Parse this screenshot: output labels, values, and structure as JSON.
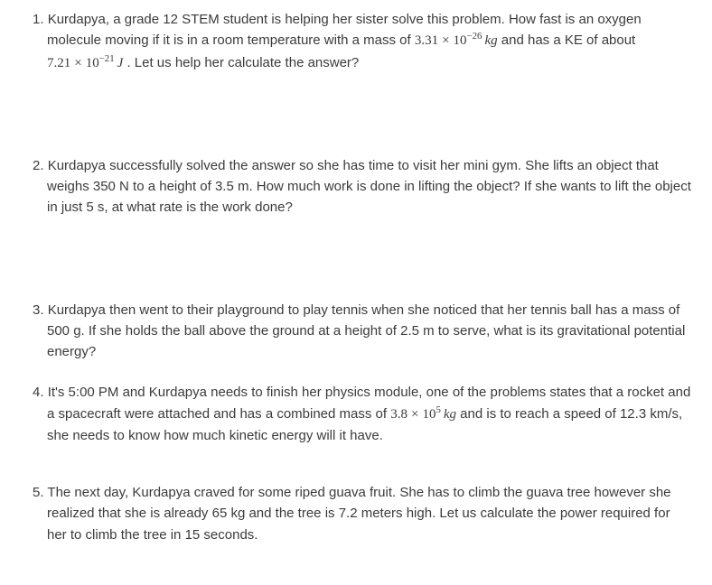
{
  "problems": [
    {
      "number": "1.",
      "pre": "Kurdapya, a grade 12 STEM student is helping her sister solve this problem. How fast is an oxygen molecule moving if it is in a room temperature with a mass of ",
      "math1": {
        "coef": "3.31",
        "exp": "−26",
        "unit": "kg"
      },
      "mid": " and has a KE of about ",
      "math2": {
        "coef": "7.21",
        "exp": "−21",
        "unit": "J"
      },
      "post": " . Let us help her calculate the answer?"
    },
    {
      "number": "2.",
      "text": "Kurdapya successfully solved the answer so she has time to visit her mini gym. She lifts an object that weighs 350 N to a height of 3.5 m. How much work is done in lifting the object? If she wants to lift the object in just 5 s, at what rate is the work done?"
    },
    {
      "number": "3.",
      "text": "Kurdapya then went to their playground to play tennis when she noticed that her tennis ball has a mass of 500 g. If she holds the ball above the ground at a height of 2.5 m to serve, what is its gravitational potential energy?"
    },
    {
      "number": "4.",
      "pre": "It's 5:00 PM and Kurdapya needs to finish her physics module, one of the problems states that a rocket and a spacecraft were attached and has a combined mass of ",
      "math1": {
        "coef": "3.8",
        "exp": "5",
        "unit": "kg"
      },
      "post": " and is to reach a speed of 12.3 km/s, she needs to know how much kinetic energy will it have."
    },
    {
      "number": "5.",
      "text": "The next day, Kurdapya craved for some riped guava fruit. She has to climb the guava tree however she realized that she is already 65 kg and the tree is 7.2 meters high. Let us calculate the power required for her to climb the tree in 15 seconds."
    }
  ]
}
